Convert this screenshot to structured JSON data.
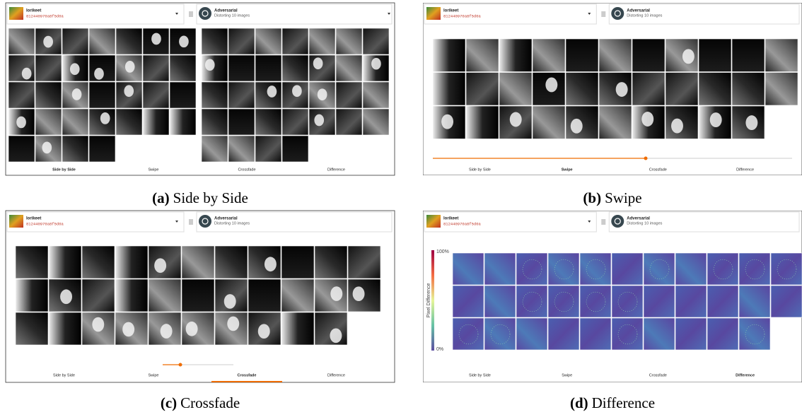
{
  "panels": [
    {
      "caption_label": "(a)",
      "caption_text": "Side by Side",
      "model": {
        "name": "lorikeet",
        "id": "812440970a8f5d0a"
      },
      "method": {
        "name": "Adversarial",
        "detail": "Distorting 10 images"
      },
      "tabs": [
        "Side by Side",
        "Swipe",
        "Crossfade",
        "Difference"
      ]
    },
    {
      "caption_label": "(b)",
      "caption_text": "Swipe",
      "model": {
        "name": "lorikeet",
        "id": "812440970a8f5d0a"
      },
      "method": {
        "name": "Adversarial",
        "detail": "Distorting 10 images"
      },
      "tabs": [
        "Side by Side",
        "Swipe",
        "Crossfade",
        "Difference"
      ]
    },
    {
      "caption_label": "(c)",
      "caption_text": "Crossfade",
      "model": {
        "name": "lorikeet",
        "id": "812440970a8f5d0a"
      },
      "method": {
        "name": "Adversarial",
        "detail": "Distorting 10 images"
      },
      "tabs": [
        "Side by Side",
        "Swipe",
        "Crossfade",
        "Difference"
      ]
    },
    {
      "caption_label": "(d)",
      "caption_text": "Difference",
      "model": {
        "name": "lorikeet",
        "id": "812440970a8f5d0a"
      },
      "method": {
        "name": "Adversarial",
        "detail": "Distorting 10 images"
      },
      "tabs": [
        "Side by Side",
        "Swipe",
        "Crossfade",
        "Difference"
      ],
      "colorbar": {
        "title": "Pixel Difference",
        "max": "100%",
        "min": "0%"
      }
    }
  ]
}
